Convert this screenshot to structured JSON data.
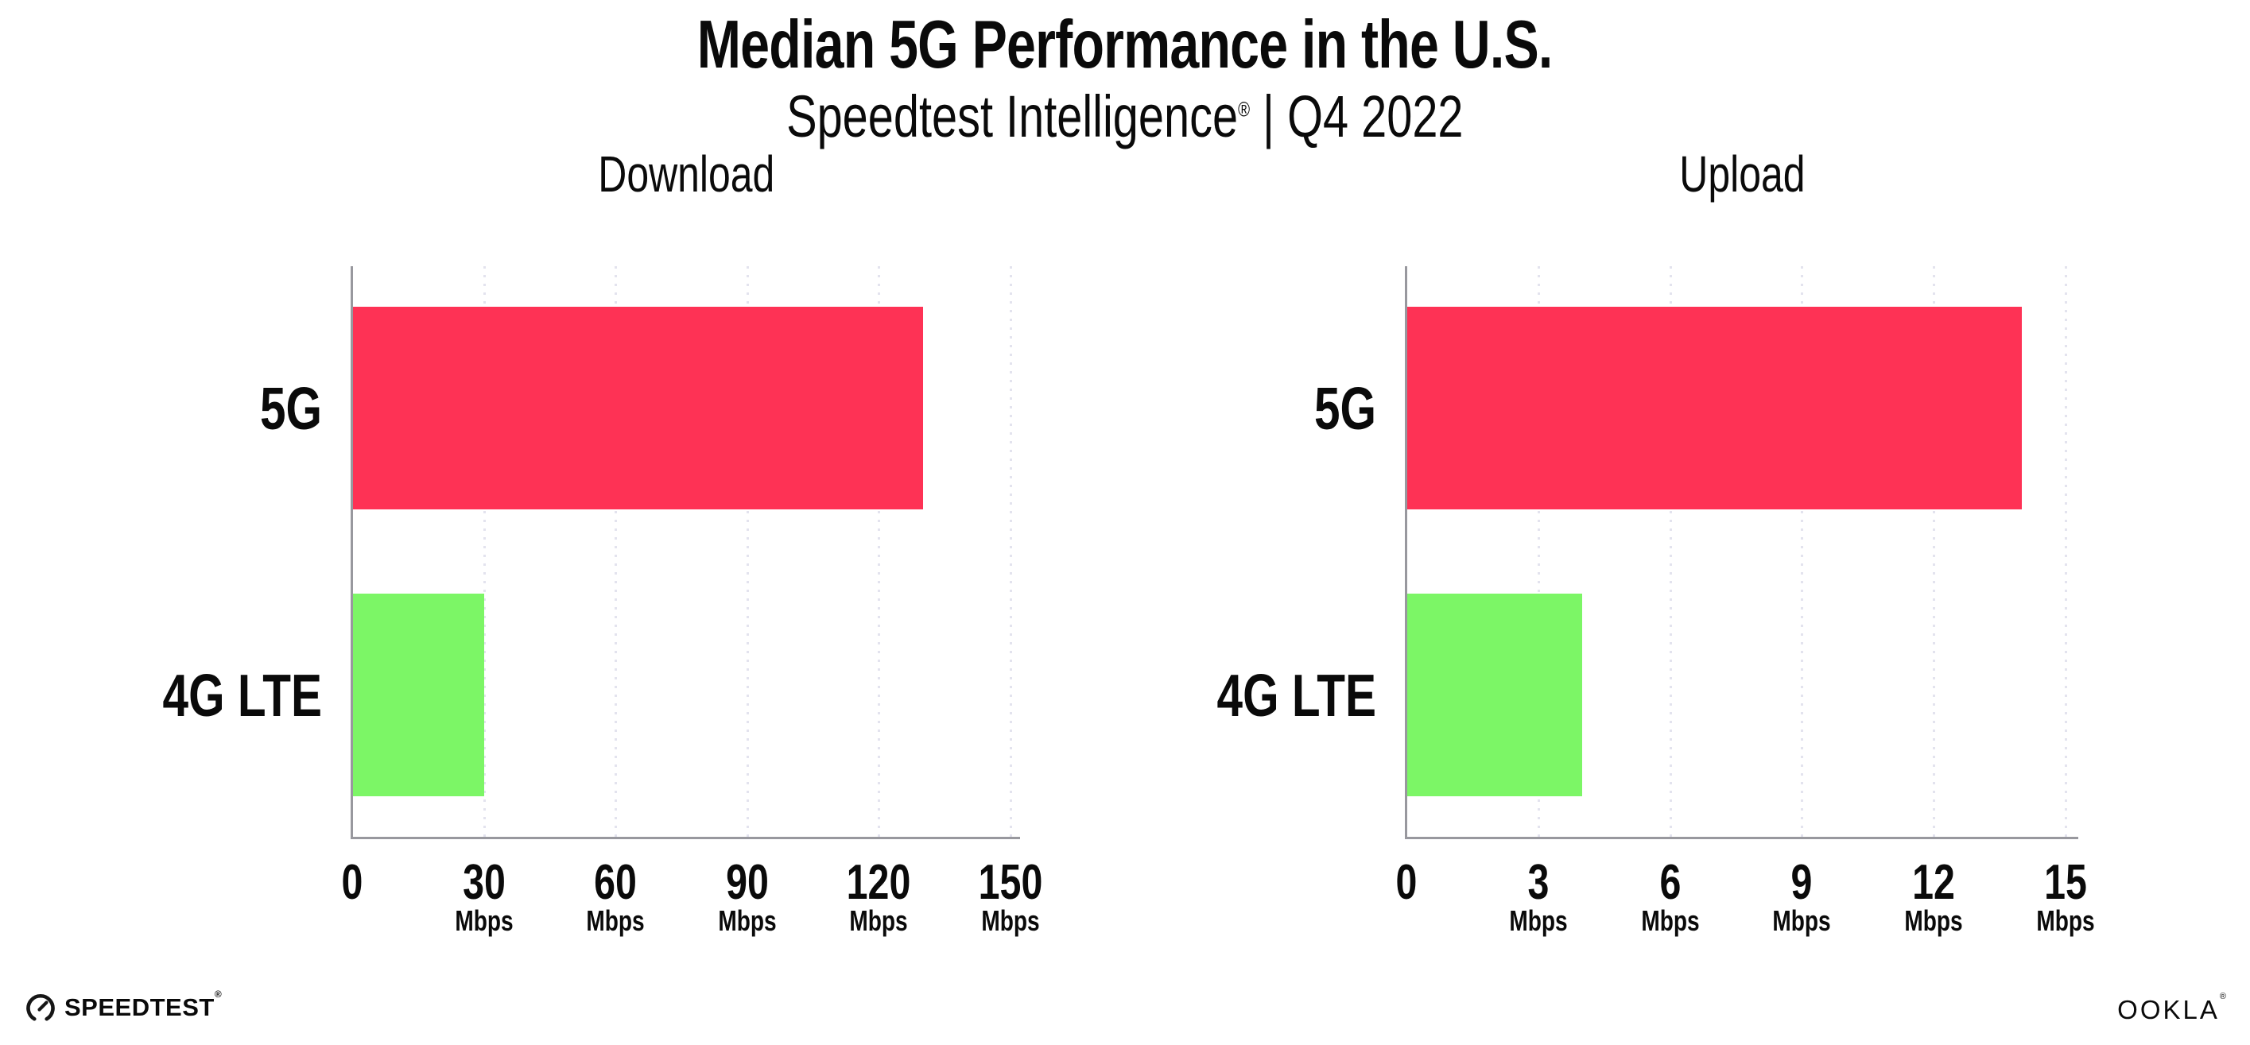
{
  "header": {
    "title": "Median 5G Performance in the U.S.",
    "subtitle_brand": "Speedtest Intelligence",
    "subtitle_reg": "®",
    "subtitle_rest": " | Q4 2022"
  },
  "footer": {
    "speedtest_label": "SPEEDTEST",
    "speedtest_reg": "®",
    "ookla_label": "OOKLA",
    "ookla_reg": "®"
  },
  "colors": {
    "bar_5g": "#fe3255",
    "bar_4g_lte": "#7cf666",
    "axis": "#98989e",
    "grid_dot": "#e3e3ee",
    "text": "#0a0a0a",
    "background": "#ffffff"
  },
  "chart_data": [
    {
      "type": "bar",
      "orientation": "horizontal",
      "title": "Download",
      "categories": [
        "5G",
        "4G LTE"
      ],
      "values": [
        130,
        30
      ],
      "unit": "Mbps",
      "xlabel": "",
      "ylabel": "",
      "xlim": [
        0,
        150
      ],
      "xticks": [
        0,
        30,
        60,
        90,
        120,
        150
      ],
      "grid": "dotted-vertical",
      "legend": "none",
      "bar_colors": [
        "#fe3255",
        "#7cf666"
      ]
    },
    {
      "type": "bar",
      "orientation": "horizontal",
      "title": "Upload",
      "categories": [
        "5G",
        "4G LTE"
      ],
      "values": [
        14,
        4
      ],
      "unit": "Mbps",
      "xlabel": "",
      "ylabel": "",
      "xlim": [
        0,
        15
      ],
      "xticks": [
        0,
        3,
        6,
        9,
        12,
        15
      ],
      "grid": "dotted-vertical",
      "legend": "none",
      "bar_colors": [
        "#fe3255",
        "#7cf666"
      ]
    }
  ]
}
